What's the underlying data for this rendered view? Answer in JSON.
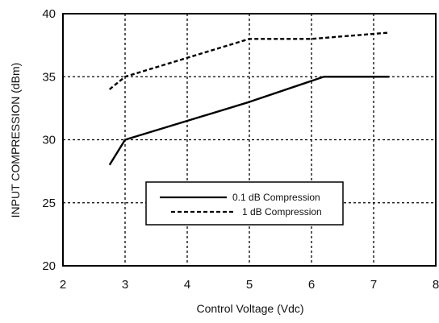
{
  "chart_data": {
    "type": "line",
    "xlabel": "Control Voltage (Vdc)",
    "ylabel": "INPUT COMPRESSION (dBm)",
    "xlim": [
      2,
      8
    ],
    "ylim": [
      20,
      40
    ],
    "x_ticks": [
      2,
      3,
      4,
      5,
      6,
      7,
      8
    ],
    "y_ticks": [
      20,
      25,
      30,
      35,
      40
    ],
    "grid": true,
    "grid_style": "dashed",
    "legend_position": "lower-right-center",
    "series": [
      {
        "name": "0.1 dB Compression",
        "line_style": "solid",
        "x": [
          2.75,
          3.0,
          5.0,
          6.2,
          7.25
        ],
        "y": [
          28.0,
          30.0,
          33.0,
          35.0,
          35.0
        ]
      },
      {
        "name": "1 dB Compression",
        "line_style": "dashed",
        "x": [
          2.75,
          3.0,
          4.0,
          5.0,
          6.0,
          7.25
        ],
        "y": [
          34.0,
          35.0,
          36.5,
          38.0,
          38.0,
          38.5
        ]
      }
    ]
  },
  "colors": {
    "line": "#000000",
    "grid": "#000000",
    "background": "#ffffff"
  }
}
